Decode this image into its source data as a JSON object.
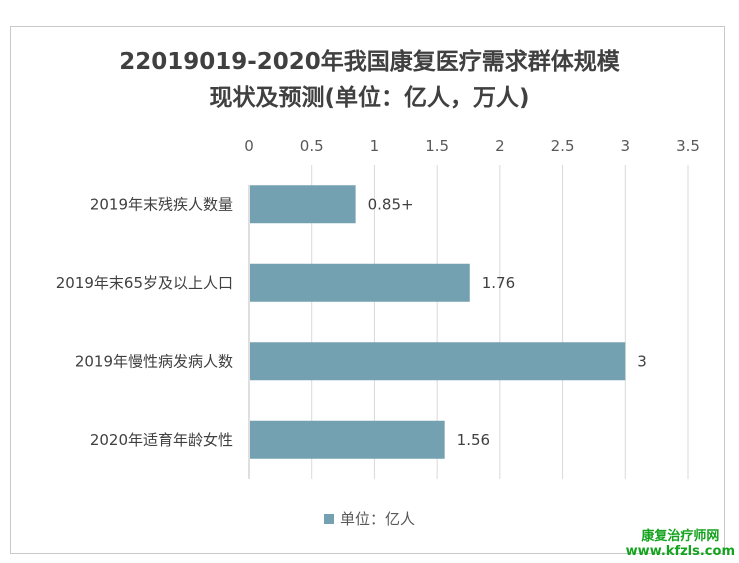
{
  "chart_data": {
    "type": "bar",
    "orientation": "horizontal",
    "title_lines": [
      "22019019-2020年我国康复医疗需求群体规模",
      "现状及预测(单位：亿人，万人)"
    ],
    "categories": [
      "2019年末残疾人数量",
      "2019年末65岁及以上人口",
      "2019年慢性病发病人数",
      "2020年适育年龄女性"
    ],
    "values": [
      0.85,
      1.76,
      3,
      1.56
    ],
    "data_labels": [
      "0.85+",
      "1.76",
      "3",
      "1.56"
    ],
    "series": [
      {
        "name": "单位：亿人",
        "values": [
          0.85,
          1.76,
          3,
          1.56
        ]
      }
    ],
    "xlim": [
      0,
      3.5
    ],
    "x_ticks": [
      "0",
      "0.5",
      "1",
      "1.5",
      "2",
      "2.5",
      "3",
      "3.5"
    ],
    "x_axis_position": "top",
    "grid": true,
    "legend_position": "bottom",
    "bar_color": "#73a1b2"
  },
  "watermark": {
    "line1": "康复治疗师网",
    "line2": "www.kfzls.com"
  }
}
